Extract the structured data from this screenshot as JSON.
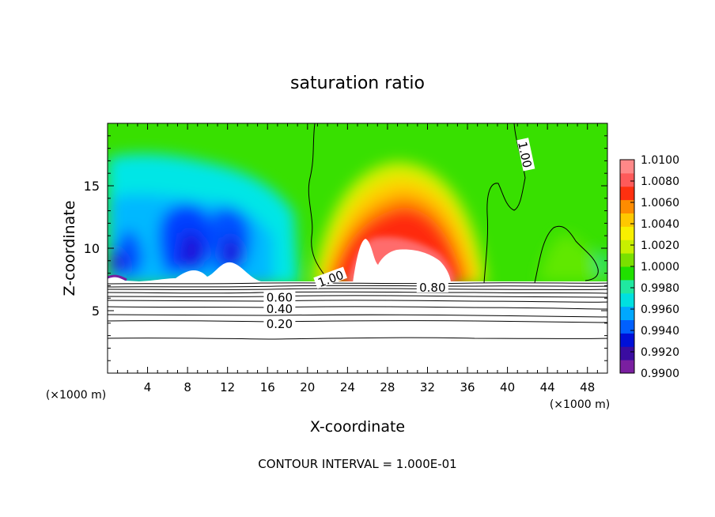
{
  "chart_data": {
    "type": "heatmap",
    "title": "saturation ratio",
    "xlabel": "X-coordinate",
    "ylabel": "Z-coordinate",
    "x_unit": "(×1000 m)",
    "x_ticks": [
      4,
      8,
      12,
      16,
      20,
      24,
      28,
      32,
      36,
      40,
      44,
      48
    ],
    "y_ticks": [
      5,
      10,
      15
    ],
    "xlim": [
      0,
      50
    ],
    "ylim": [
      0,
      20
    ],
    "colorbar": {
      "ticks": [
        "1.0100",
        "1.0080",
        "1.0060",
        "1.0040",
        "1.0020",
        "1.0000",
        "0.9980",
        "0.9960",
        "0.9940",
        "0.9920",
        "0.9900"
      ],
      "colors": [
        "#7a1fa0",
        "#3a0ca0",
        "#0010d8",
        "#0060ff",
        "#00a8ff",
        "#00e0e0",
        "#20e8a0",
        "#20e000",
        "#7ae000",
        "#c8f000",
        "#f8f000",
        "#ffc800",
        "#ff8c00",
        "#ff3010",
        "#ff5a5a",
        "#ff8888"
      ]
    },
    "contour_labels": [
      {
        "text": "1.00",
        "x": 22.3,
        "z": 7.6,
        "angle": -20
      },
      {
        "text": "1.00",
        "x": 41.8,
        "z": 17.5,
        "angle": 78
      },
      {
        "text": "0.80",
        "x": 32.5,
        "z": 6.9,
        "angle": 0
      },
      {
        "text": "0.60",
        "x": 17.2,
        "z": 6.1,
        "angle": 0
      },
      {
        "text": "0.40",
        "x": 17.2,
        "z": 5.2,
        "angle": 0
      },
      {
        "text": "0.20",
        "x": 17.2,
        "z": 4.0,
        "angle": 0
      }
    ],
    "footer": "CONTOUR INTERVAL = 1.000E-01",
    "grid": false
  }
}
